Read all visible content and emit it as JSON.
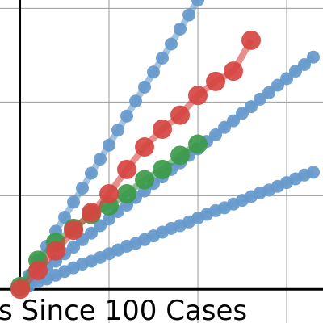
{
  "chart_data": {
    "type": "line",
    "x_label": "s Since 100 Cases",
    "xlim": [
      -4.55,
      68.18
    ],
    "ylim": [
      -0.36,
      3.09
    ],
    "xticks": [
      20,
      40,
      60
    ],
    "yticks": [
      1,
      2,
      3
    ],
    "grid": true,
    "series": [
      {
        "color": "#6699cc",
        "x": [
          0,
          2,
          4,
          6,
          8,
          10,
          12,
          14,
          16,
          18,
          20,
          22,
          24,
          26,
          28,
          30,
          32,
          34,
          36,
          38,
          40
        ],
        "values": [
          0,
          0.15,
          0.31,
          0.46,
          0.62,
          0.77,
          0.93,
          1.08,
          1.24,
          1.39,
          1.54,
          1.7,
          1.85,
          2.01,
          2.16,
          2.32,
          2.47,
          2.62,
          2.78,
          2.93,
          3.09
        ]
      },
      {
        "color": "#6699cc",
        "x": [
          0,
          2,
          4,
          6,
          8,
          10,
          12,
          14,
          16,
          18,
          20,
          22,
          24,
          26,
          28,
          30,
          32,
          34,
          36,
          38,
          40,
          42,
          44,
          46,
          48,
          50,
          52,
          54,
          56,
          58,
          60,
          62,
          64,
          66
        ],
        "values": [
          0,
          0.08,
          0.15,
          0.23,
          0.3,
          0.38,
          0.45,
          0.53,
          0.6,
          0.68,
          0.75,
          0.83,
          0.9,
          0.98,
          1.05,
          1.13,
          1.2,
          1.28,
          1.35,
          1.43,
          1.5,
          1.58,
          1.65,
          1.73,
          1.8,
          1.88,
          1.95,
          2.03,
          2.1,
          2.18,
          2.25,
          2.33,
          2.4,
          2.48
        ]
      },
      {
        "color": "#6699cc",
        "x": [
          0,
          2,
          4,
          6,
          8,
          10,
          12,
          14,
          16,
          18,
          20,
          22,
          24,
          26,
          28,
          30,
          32,
          34,
          36,
          38,
          40,
          42,
          44,
          46,
          48,
          50,
          52,
          54,
          56,
          58,
          60,
          62,
          64,
          66
        ],
        "values": [
          0,
          0.04,
          0.08,
          0.11,
          0.15,
          0.19,
          0.23,
          0.27,
          0.3,
          0.34,
          0.38,
          0.42,
          0.46,
          0.49,
          0.53,
          0.57,
          0.61,
          0.65,
          0.68,
          0.72,
          0.76,
          0.8,
          0.84,
          0.87,
          0.91,
          0.95,
          0.99,
          1.03,
          1.06,
          1.1,
          1.14,
          1.18,
          1.22,
          1.25
        ]
      },
      {
        "color": "#3c9a4a",
        "x": [
          0,
          4,
          8,
          12,
          16,
          20,
          24,
          28,
          32,
          36,
          40
        ],
        "values": [
          0.03,
          0.31,
          0.5,
          0.65,
          0.8,
          0.89,
          1.02,
          1.17,
          1.28,
          1.43,
          1.55
        ]
      },
      {
        "color": "#d64541",
        "x": [
          0,
          4,
          8,
          12,
          16,
          20,
          24,
          28,
          32,
          36,
          40,
          44,
          48,
          52
        ],
        "values": [
          0,
          0.2,
          0.41,
          0.63,
          0.82,
          1.02,
          1.28,
          1.52,
          1.71,
          1.86,
          2.07,
          2.22,
          2.33,
          2.66
        ]
      }
    ]
  }
}
